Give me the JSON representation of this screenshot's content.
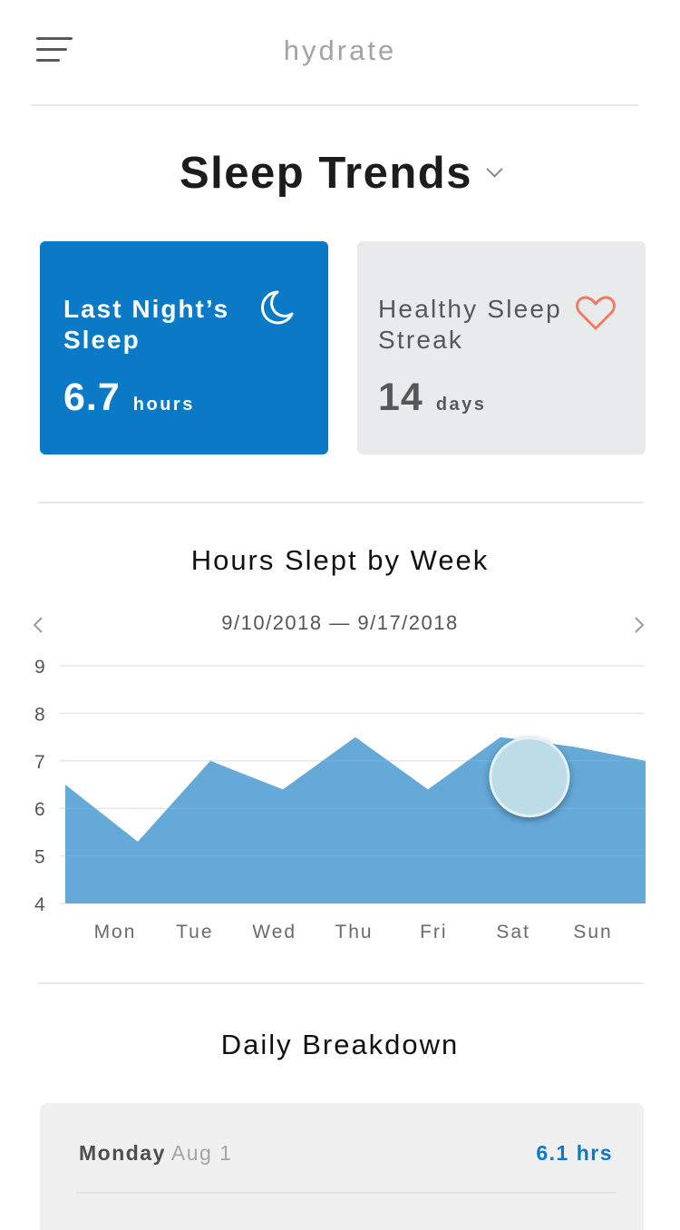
{
  "header": {
    "title": "hydrate",
    "menu_icon": "hamburger-menu-icon"
  },
  "page": {
    "title": "Sleep Trends",
    "dropdown_icon": "chevron-down-icon"
  },
  "cards": {
    "last_night": {
      "label": "Last Night’s Sleep",
      "value": "6.7",
      "unit": "hours",
      "icon": "moon-icon",
      "color": "#0a7ac7"
    },
    "streak": {
      "label": "Healthy Sleep Streak",
      "value": "14",
      "unit": "days",
      "icon": "heart-icon",
      "icon_color": "#ef7c62"
    }
  },
  "weekly": {
    "title": "Hours Slept by Week",
    "date_range": "9/10/2018 — 9/17/2018",
    "prev_icon": "chevron-left-icon",
    "next_icon": "chevron-right-icon"
  },
  "chart_data": {
    "type": "area",
    "categories": [
      "Mon",
      "Tue",
      "Wed",
      "Thu",
      "Fri",
      "Sat",
      "Sun"
    ],
    "x": [
      0,
      1,
      2,
      3,
      4,
      5,
      6,
      7,
      8
    ],
    "values": [
      6.5,
      5.3,
      7.0,
      6.4,
      7.5,
      6.4,
      7.5,
      7.3,
      7.0
    ],
    "yticks": [
      9,
      8,
      7,
      6,
      5,
      4
    ],
    "ylim": [
      4,
      9
    ],
    "grid": true,
    "fill_color": "#64a9d8",
    "highlight_index": 6,
    "highlight_color": "#bcdce8"
  },
  "daily": {
    "title": "Daily Breakdown",
    "items": [
      {
        "day": "Monday",
        "date": "Aug 1",
        "hours": "6.1 hrs"
      }
    ]
  }
}
